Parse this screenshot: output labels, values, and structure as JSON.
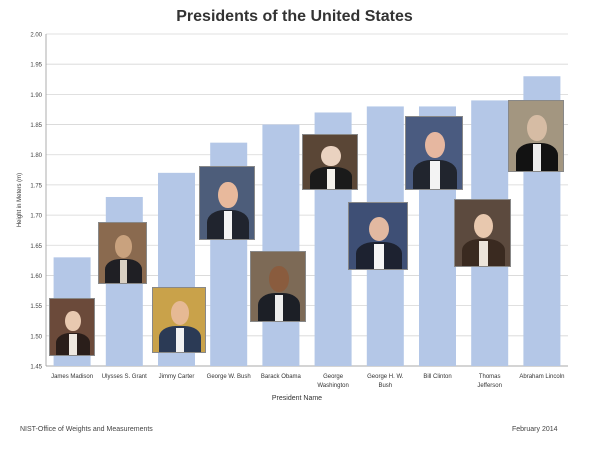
{
  "chart_data": {
    "type": "bar",
    "title": "Presidents of the United States",
    "xlabel": "President Name",
    "ylabel": "Height in Meters (m)",
    "ylim": [
      1.45,
      2.0
    ],
    "yticks": [
      "1.45",
      "1.50",
      "1.55",
      "1.60",
      "1.65",
      "1.70",
      "1.75",
      "1.80",
      "1.85",
      "1.90",
      "1.95",
      "2.00"
    ],
    "categories": [
      [
        "James Madison"
      ],
      [
        "Ulysses S. Grant"
      ],
      [
        "Jimmy Carter"
      ],
      [
        "George W. Bush"
      ],
      [
        "Barack Obama"
      ],
      [
        "George",
        "Washington"
      ],
      [
        "George H. W.",
        "Bush"
      ],
      [
        "Bill Clinton"
      ],
      [
        "Thomas",
        "Jefferson"
      ],
      [
        "Abraham Lincoln"
      ]
    ],
    "values": [
      1.63,
      1.73,
      1.77,
      1.82,
      1.85,
      1.87,
      1.88,
      1.88,
      1.89,
      1.93
    ],
    "bar_color": "#b4c7e7",
    "grid": true
  },
  "footer": {
    "left": "NIST-Office of Weights and Measurements",
    "right": "February 2014"
  },
  "portraits": [
    {
      "president": "James Madison",
      "bg": "#6b4a3a",
      "skin": "#e8c9b0",
      "suit": "#2a1e1a",
      "shirt": "#efe8e0"
    },
    {
      "president": "Ulysses S. Grant",
      "bg": "#8a6a4f",
      "skin": "#c9a27e",
      "suit": "#1f1f24",
      "shirt": "#d9d0c3"
    },
    {
      "president": "Jimmy Carter",
      "bg": "#c9a24a",
      "skin": "#e6b994",
      "suit": "#2b3a55",
      "shirt": "#f2f2f2"
    },
    {
      "president": "George W. Bush",
      "bg": "#4d5d7a",
      "skin": "#e8b99c",
      "suit": "#20242e",
      "shirt": "#f4f4f4"
    },
    {
      "president": "Barack Obama",
      "bg": "#7d6a56",
      "skin": "#8a5c3e",
      "suit": "#1c1f26",
      "shirt": "#eeeeee"
    },
    {
      "president": "George Washington",
      "bg": "#5a4636",
      "skin": "#ead2c0",
      "suit": "#1a1a1a",
      "shirt": "#f5f2ec"
    },
    {
      "president": "George H. W. Bush",
      "bg": "#3e4f75",
      "skin": "#e2b9a1",
      "suit": "#1d2230",
      "shirt": "#f5f5f5"
    },
    {
      "president": "Bill Clinton",
      "bg": "#4a5b80",
      "skin": "#e6b7a0",
      "suit": "#21252e",
      "shirt": "#f3f3f3"
    },
    {
      "president": "Thomas Jefferson",
      "bg": "#5c4a3e",
      "skin": "#e8c8ae",
      "suit": "#3a2a20",
      "shirt": "#ece4da"
    },
    {
      "president": "Abraham Lincoln",
      "bg": "#a39680",
      "skin": "#d6bca4",
      "suit": "#121212",
      "shirt": "#ededed"
    }
  ]
}
